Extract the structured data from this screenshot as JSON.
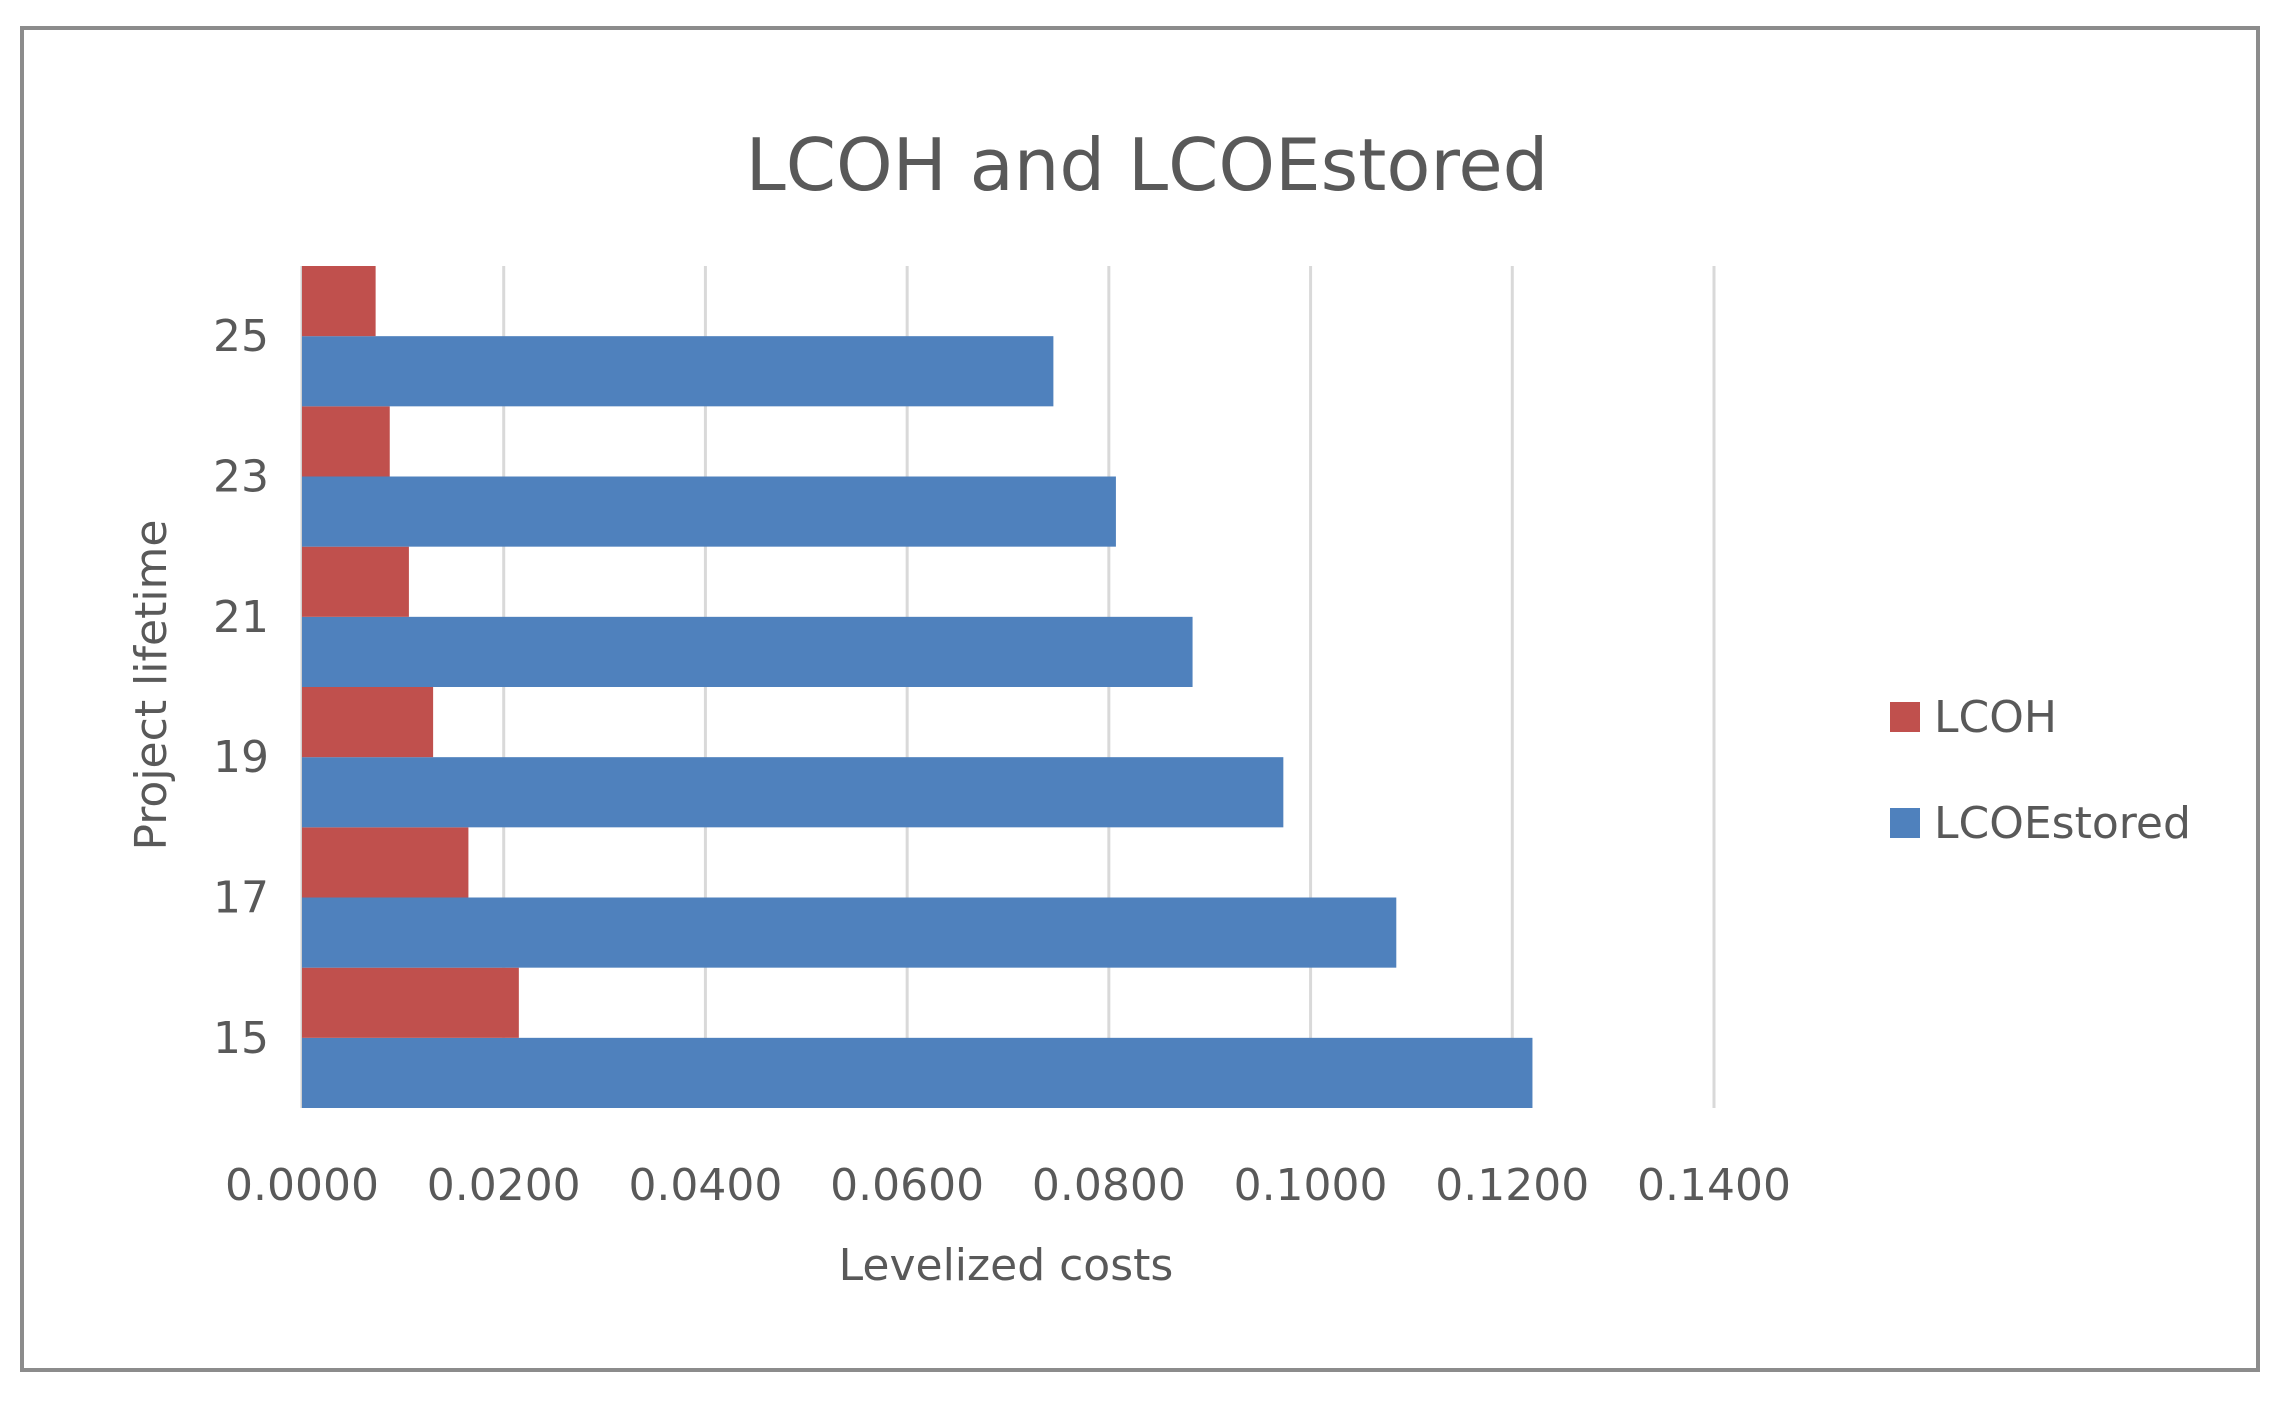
{
  "chart_data": {
    "type": "bar",
    "orientation": "horizontal",
    "title": "LCOH and LCOEstored",
    "xlabel": "Levelized costs",
    "ylabel": "Project lifetime",
    "categories": [
      "15",
      "17",
      "19",
      "21",
      "23",
      "25"
    ],
    "series": [
      {
        "name": "LCOH",
        "color": "#c0504d",
        "values": [
          0.0215,
          0.0165,
          0.013,
          0.0106,
          0.0087,
          0.0073
        ]
      },
      {
        "name": "LCOEstored",
        "color": "#4f81bd",
        "values": [
          0.122,
          0.1085,
          0.0973,
          0.0883,
          0.0807,
          0.0745
        ]
      }
    ],
    "xlim": [
      0,
      0.14
    ],
    "xticks": [
      "0.0000",
      "0.0200",
      "0.0400",
      "0.0600",
      "0.0800",
      "0.1000",
      "0.1200",
      "0.1400"
    ],
    "xtick_values": [
      0,
      0.02,
      0.04,
      0.06,
      0.08,
      0.1,
      0.12,
      0.14
    ],
    "grid": true,
    "legend_position": "right",
    "gridline_color": "#d9d9d9"
  }
}
